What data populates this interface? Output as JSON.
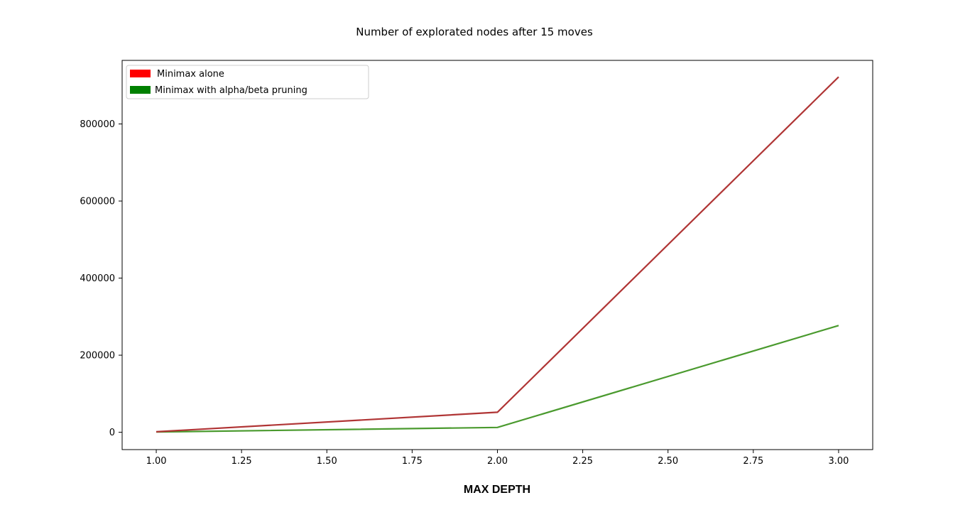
{
  "chart_data": {
    "type": "line",
    "title": "Number of explorated nodes after 15 moves",
    "xlabel": "MAX DEPTH",
    "ylabel": "",
    "x": [
      1.0,
      2.0,
      3.0
    ],
    "xlim": [
      0.9,
      3.1
    ],
    "ylim": [
      -45000,
      965000
    ],
    "xticks": [
      1.0,
      1.25,
      1.5,
      1.75,
      2.0,
      2.25,
      2.5,
      2.75,
      3.0
    ],
    "xtick_labels": [
      "1.00",
      "1.25",
      "1.50",
      "1.75",
      "2.00",
      "2.25",
      "2.50",
      "2.75",
      "3.00"
    ],
    "yticks": [
      0,
      200000,
      400000,
      600000,
      800000
    ],
    "ytick_labels": [
      "0",
      "200000",
      "400000",
      "600000",
      "800000"
    ],
    "grid": false,
    "legend_position": "top-left",
    "series": [
      {
        "name": "Minimax alone",
        "values": [
          1200,
          52000,
          922000
        ],
        "line_color": "#b03535",
        "legend_color": "#ff0000"
      },
      {
        "name": "Minimax with alpha/beta pruning",
        "values": [
          800,
          12500,
          277000
        ],
        "line_color": "#4a9a2e",
        "legend_color": "#008000"
      }
    ]
  }
}
